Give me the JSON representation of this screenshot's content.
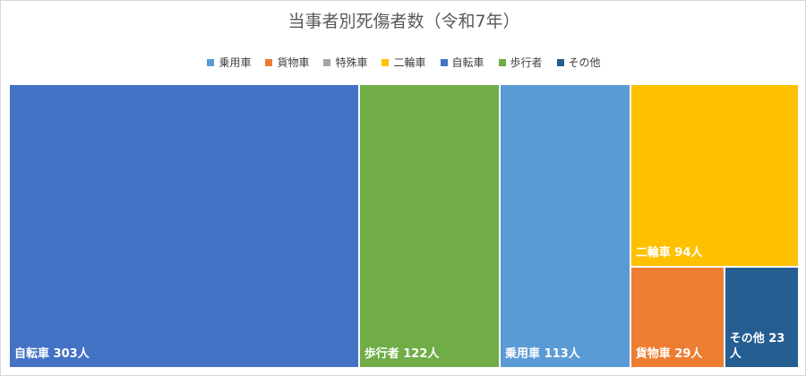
{
  "chart_data": {
    "type": "treemap",
    "title": "当事者別死傷者数（令和7年）",
    "unit": "人",
    "legend_position": "top",
    "legend": [
      {
        "name": "乗用車",
        "color": "#5b9bd5"
      },
      {
        "name": "貨物車",
        "color": "#ed7d31"
      },
      {
        "name": "特殊車",
        "color": "#a5a5a5"
      },
      {
        "name": "二輪車",
        "color": "#ffc000"
      },
      {
        "name": "自転車",
        "color": "#4472c4"
      },
      {
        "name": "歩行者",
        "color": "#70ad47"
      },
      {
        "name": "その他",
        "color": "#255e91"
      }
    ],
    "items": [
      {
        "name": "自転車",
        "value": 303,
        "color": "#4472c4"
      },
      {
        "name": "歩行者",
        "value": 122,
        "color": "#70ad47"
      },
      {
        "name": "乗用車",
        "value": 113,
        "color": "#5b9bd5"
      },
      {
        "name": "二輪車",
        "value": 94,
        "color": "#ffc000"
      },
      {
        "name": "貨物車",
        "value": 29,
        "color": "#ed7d31"
      },
      {
        "name": "その他",
        "value": 23,
        "color": "#255e91"
      },
      {
        "name": "特殊車",
        "value": 0,
        "color": "#a5a5a5"
      }
    ]
  }
}
